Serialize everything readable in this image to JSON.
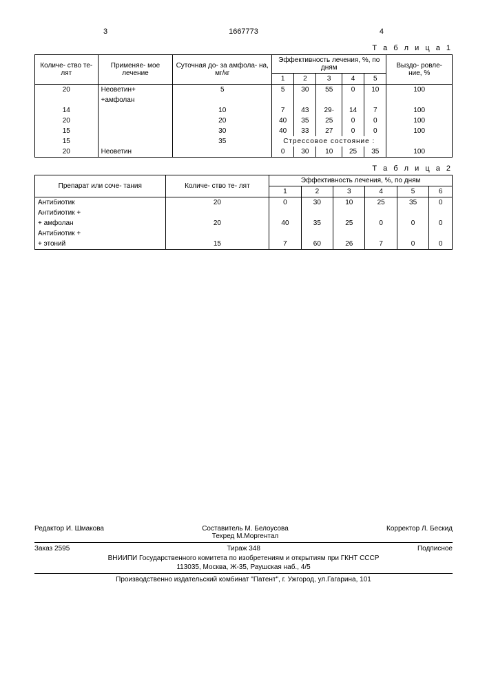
{
  "header": {
    "left_num": "3",
    "doc_num": "1667773",
    "right_num": "4"
  },
  "table1": {
    "label": "Т а б л и ц а 1",
    "headers": {
      "h1": "Количе-\nство те-\nлят",
      "h2": "Применяе-\nмое лечение",
      "h3": "Суточная до-\nза амфола-\nна, мг/кг",
      "h4": "Эффективность лечения, %, по дням",
      "d1": "1",
      "d2": "2",
      "d3": "3",
      "d4": "4",
      "d5": "5",
      "h5": "Выздо-\nровле-\nние, %"
    },
    "rows": [
      {
        "c1": "20",
        "c2": "Неоветин+",
        "c3": "5",
        "d1": "5",
        "d2": "30",
        "d3": "55",
        "d4": "0",
        "d5": "10",
        "c5": "100"
      },
      {
        "c1": "",
        "c2": "+амфолан",
        "c3": "",
        "d1": "",
        "d2": "",
        "d3": "",
        "d4": "",
        "d5": "",
        "c5": ""
      },
      {
        "c1": "14",
        "c2": "",
        "c3": "10",
        "d1": "7",
        "d2": "43",
        "d3": "29·",
        "d4": "14",
        "d5": "7",
        "c5": "100"
      },
      {
        "c1": "20",
        "c2": "",
        "c3": "20",
        "d1": "40",
        "d2": "35",
        "d3": "25",
        "d4": "0",
        "d5": "0",
        "c5": "100"
      },
      {
        "c1": "15",
        "c2": "",
        "c3": "30",
        "d1": "40",
        "d2": "33",
        "d3": "27",
        "d4": "0",
        "d5": "0",
        "c5": "100"
      }
    ],
    "stress_row": {
      "c1": "15",
      "c3": "35",
      "label": "Стрессовое состояние :"
    },
    "last_row": {
      "c1": "20",
      "c2": "Неоветин",
      "c3": "",
      "d1": "0",
      "d2": "30",
      "d3": "10",
      "d4": "25",
      "d5": "35",
      "c5": "100"
    }
  },
  "table2": {
    "label": "Т а б л и ц а 2",
    "headers": {
      "h1": "Препарат или соче-\nтания",
      "h2": "Количе-\nство те-\nлят",
      "h3": "Эффективность лечения, %, по дням",
      "d1": "1",
      "d2": "2",
      "d3": "3",
      "d4": "4",
      "d5": "5",
      "d6": "6"
    },
    "rows": [
      {
        "c1": "Антибиотик",
        "c2": "20",
        "d1": "0",
        "d2": "30",
        "d3": "10",
        "d4": "25",
        "d5": "35",
        "d6": "0"
      },
      {
        "c1": "Антибиотик +",
        "c2": "",
        "d1": "",
        "d2": "",
        "d3": "",
        "d4": "",
        "d5": "",
        "d6": ""
      },
      {
        "c1": "+ амфолан",
        "c2": "20",
        "d1": "40",
        "d2": "35",
        "d3": "25",
        "d4": "0",
        "d5": "0",
        "d6": "0"
      },
      {
        "c1": "Антибиотик +",
        "c2": "",
        "d1": "",
        "d2": "",
        "d3": "",
        "d4": "",
        "d5": "",
        "d6": ""
      },
      {
        "c1": "+ этоний",
        "c2": "15",
        "d1": "7",
        "d2": "60",
        "d3": "26",
        "d4": "7",
        "d5": "0",
        "d6": "0"
      }
    ]
  },
  "footer": {
    "editor": "Редактор И. Шмакова",
    "sostavitel": "Составитель М. Белоусова",
    "tehred": "Техред М.Моргентал",
    "korrektor": "Корректор Л. Бескид",
    "zakaz": "Заказ 2595",
    "tirazh": "Тираж 348",
    "podpisnoe": "Подписное",
    "vniipi": "ВНИИПИ Государственного комитета по изобретениям и открытиям при ГКНТ СССР",
    "addr": "113035, Москва, Ж-35, Раушская наб., 4/5",
    "proizv": "Производственно издательский комбинат \"Патент\", г. Ужгород, ул.Гагарина, 101"
  }
}
